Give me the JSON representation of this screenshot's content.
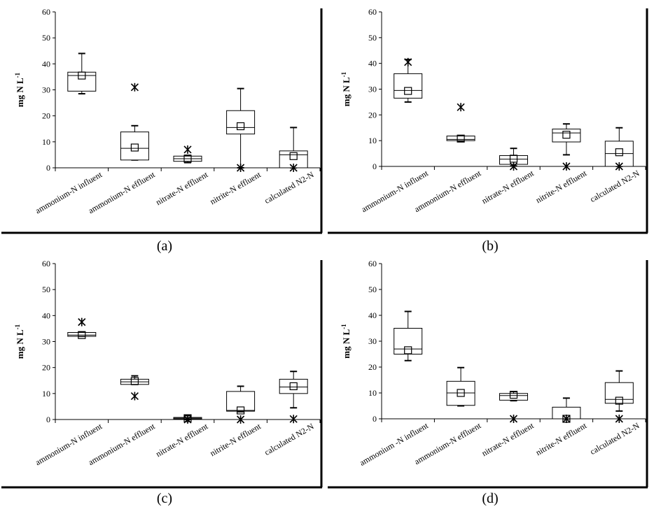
{
  "figure": {
    "panel_labels": [
      "(a)",
      "(b)",
      "(c)",
      "(d)"
    ]
  },
  "chart_data": [
    {
      "type": "boxplot",
      "panel": "(a)",
      "ylabel": "mg N L-1",
      "ylim": [
        0,
        60
      ],
      "yticks": [
        0,
        10,
        20,
        30,
        40,
        50,
        60
      ],
      "categories": [
        "ammonium-N influent",
        "ammonium-N effluent",
        "nitrate-N effluent",
        "nitrite-N effluent",
        "calculated N2-N"
      ],
      "boxes": [
        {
          "min": 28.5,
          "q1": 29.5,
          "median": 35.5,
          "q3": 36.8,
          "max": 44,
          "mean": 35.5,
          "outliers": []
        },
        {
          "min": 3,
          "q1": 3,
          "median": 7.5,
          "q3": 13.8,
          "max": 16.2,
          "mean": 7.8,
          "outliers": [
            31
          ]
        },
        {
          "min": 2,
          "q1": 2.5,
          "median": 3.5,
          "q3": 4.5,
          "max": 4.8,
          "mean": 3.5,
          "outliers": [
            7
          ]
        },
        {
          "min": 0,
          "q1": 13,
          "median": 15.5,
          "q3": 22,
          "max": 30.5,
          "mean": 16,
          "outliers": [
            0
          ]
        },
        {
          "min": 0,
          "q1": 0,
          "median": 5,
          "q3": 6.5,
          "max": 15.5,
          "mean": 4.5,
          "outliers": [
            0
          ]
        }
      ]
    },
    {
      "type": "boxplot",
      "panel": "(b)",
      "ylabel": "mg N L-1",
      "ylim": [
        0,
        60
      ],
      "yticks": [
        0,
        10,
        20,
        30,
        40,
        50,
        60
      ],
      "categories": [
        "ammonium-N influent",
        "ammonium-N effluent",
        "nitrate-N effluent",
        "nitrite-N effluent",
        "calculated N2-N"
      ],
      "boxes": [
        {
          "min": 25,
          "q1": 26.5,
          "median": 29.5,
          "q3": 36,
          "max": 41.5,
          "mean": 29.3,
          "outliers": [
            40.5
          ]
        },
        {
          "min": 9.8,
          "q1": 10,
          "median": 10.5,
          "q3": 11.8,
          "max": 11.8,
          "mean": 10.8,
          "outliers": [
            23
          ]
        },
        {
          "min": 0.2,
          "q1": 0.8,
          "median": 2.8,
          "q3": 4.2,
          "max": 7,
          "mean": 3,
          "outliers": [
            0
          ]
        },
        {
          "min": 4.5,
          "q1": 9.5,
          "median": 13,
          "q3": 14.5,
          "max": 16.5,
          "mean": 12.3,
          "outliers": [
            0
          ]
        },
        {
          "min": 0,
          "q1": 0,
          "median": 5,
          "q3": 9.8,
          "max": 15,
          "mean": 5.5,
          "outliers": [
            0
          ]
        }
      ]
    },
    {
      "type": "boxplot",
      "panel": "(c)",
      "ylabel": "mg N L-1",
      "ylim": [
        0,
        60
      ],
      "yticks": [
        0,
        10,
        20,
        30,
        40,
        50,
        60
      ],
      "categories": [
        "ammonium-N influent",
        "ammonium-N effluent",
        "nitrate-N effluent",
        "nitrite-N effluent",
        "calculated N2-N"
      ],
      "boxes": [
        {
          "min": 32,
          "q1": 32,
          "median": 32.5,
          "q3": 33.5,
          "max": 33.5,
          "mean": 32.5,
          "outliers": [
            37.5
          ]
        },
        {
          "min": 13.5,
          "q1": 13.5,
          "median": 14.5,
          "q3": 15.5,
          "max": 16.8,
          "mean": 14.8,
          "outliers": [
            9
          ]
        },
        {
          "min": 0,
          "q1": 0.2,
          "median": 0.5,
          "q3": 0.8,
          "max": 1.5,
          "mean": 0.5,
          "outliers": [
            0
          ]
        },
        {
          "min": 3,
          "q1": 3.2,
          "median": 3.5,
          "q3": 10.8,
          "max": 12.8,
          "mean": 3.5,
          "outliers": [
            0
          ]
        },
        {
          "min": 4.5,
          "q1": 10,
          "median": 12.5,
          "q3": 15.5,
          "max": 18.5,
          "mean": 12.8,
          "outliers": [
            0.2
          ]
        }
      ]
    },
    {
      "type": "boxplot",
      "panel": "(d)",
      "ylabel": "mg N L-1",
      "ylim": [
        0,
        60
      ],
      "yticks": [
        0,
        10,
        20,
        30,
        40,
        50,
        60
      ],
      "categories": [
        "ammonium -N influent",
        "ammonium-N effluent",
        "nitrate-N effluent",
        "nitrite-N effluent",
        "calculated N2-N"
      ],
      "boxes": [
        {
          "min": 22.5,
          "q1": 25,
          "median": 27,
          "q3": 35,
          "max": 41.5,
          "mean": 26.5,
          "outliers": []
        },
        {
          "min": 5,
          "q1": 5.2,
          "median": 10,
          "q3": 14.5,
          "max": 19.8,
          "mean": 10,
          "outliers": []
        },
        {
          "min": 7,
          "q1": 7.2,
          "median": 9,
          "q3": 9.8,
          "max": 10.5,
          "mean": 9.3,
          "outliers": [
            0
          ]
        },
        {
          "min": 0,
          "q1": 0,
          "median": 0,
          "q3": 4.5,
          "max": 8,
          "mean": 0,
          "outliers": [
            0
          ]
        },
        {
          "min": 3,
          "q1": 6,
          "median": 7.5,
          "q3": 14,
          "max": 18.5,
          "mean": 7,
          "outliers": [
            0
          ]
        }
      ]
    }
  ]
}
